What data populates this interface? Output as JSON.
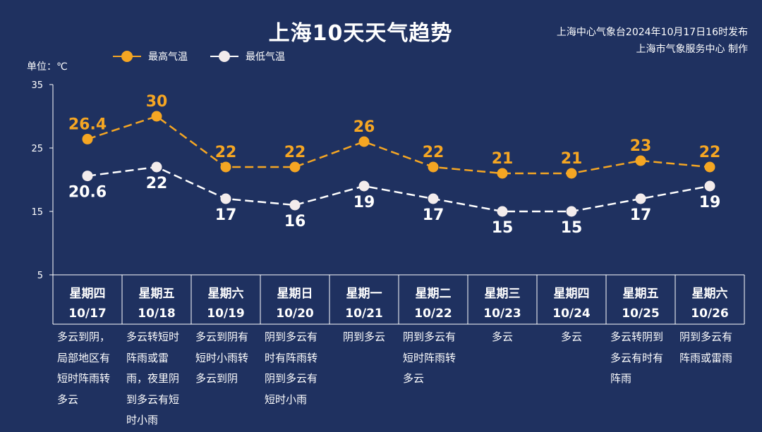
{
  "header": {
    "title": "上海10天天气趋势",
    "source_line1": "上海中心气象台2024年10月17日16时发布",
    "source_line2": "上海市气象服务中心 制作",
    "unit_label": "单位：℃"
  },
  "colors": {
    "background": "#1f3160",
    "high": "#f5a623",
    "low": "#ffffff",
    "low_marker": "#f3ecec"
  },
  "legend": [
    {
      "label": "最高气温",
      "color": "#f5a623"
    },
    {
      "label": "最低气温",
      "color": "#ffffff"
    }
  ],
  "chart_data": {
    "type": "line",
    "title": "上海10天天气趋势",
    "ylabel": "单位：℃",
    "ylim": [
      5,
      35
    ],
    "yticks": [
      5,
      15,
      25,
      35
    ],
    "grid": false,
    "legend_position": "top-left",
    "categories": [
      "10/17",
      "10/18",
      "10/19",
      "10/20",
      "10/21",
      "10/22",
      "10/23",
      "10/24",
      "10/25",
      "10/26"
    ],
    "series": [
      {
        "name": "最高气温",
        "values": [
          26.4,
          30,
          22,
          22,
          26,
          22,
          21,
          21,
          23,
          22
        ]
      },
      {
        "name": "最低气温",
        "values": [
          20.6,
          22,
          17,
          16,
          19,
          17,
          15,
          15,
          17,
          19
        ]
      }
    ]
  },
  "days": [
    {
      "weekday": "星期四",
      "date": "10/17",
      "desc": "多云到阴，局部地区有短时阵雨转多云"
    },
    {
      "weekday": "星期五",
      "date": "10/18",
      "desc": "多云转短时阵雨或雷雨，夜里阴到多云有短时小雨"
    },
    {
      "weekday": "星期六",
      "date": "10/19",
      "desc": "多云到阴有短时小雨转多云到阴"
    },
    {
      "weekday": "星期日",
      "date": "10/20",
      "desc": "阴到多云有时有阵雨转阴到多云有短时小雨"
    },
    {
      "weekday": "星期一",
      "date": "10/21",
      "desc": "阴到多云"
    },
    {
      "weekday": "星期二",
      "date": "10/22",
      "desc": "阴到多云有短时阵雨转多云"
    },
    {
      "weekday": "星期三",
      "date": "10/23",
      "desc": "多云"
    },
    {
      "weekday": "星期四",
      "date": "10/24",
      "desc": "多云"
    },
    {
      "weekday": "星期五",
      "date": "10/25",
      "desc": "多云转阴到多云有时有阵雨"
    },
    {
      "weekday": "星期六",
      "date": "10/26",
      "desc": "阴到多云有阵雨或雷雨"
    }
  ]
}
